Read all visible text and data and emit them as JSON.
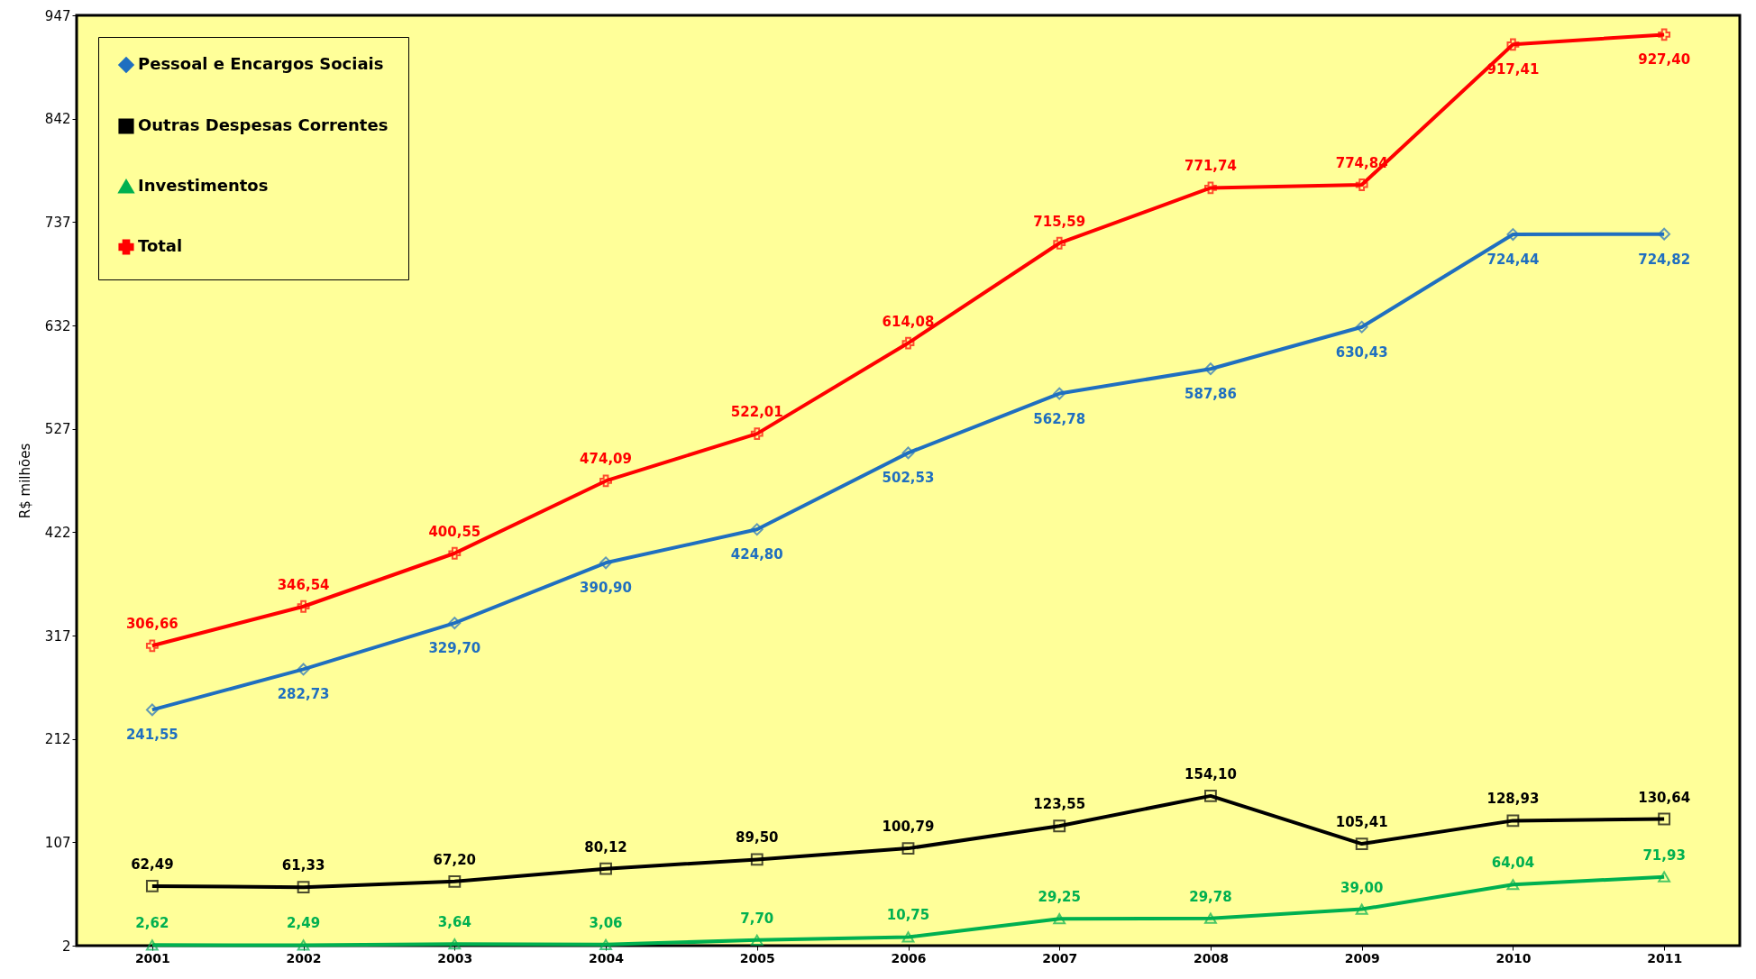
{
  "chart_data": {
    "type": "line",
    "ylabel": "R$ milhões",
    "categories": [
      "2001",
      "2002",
      "2003",
      "2004",
      "2005",
      "2006",
      "2007",
      "2008",
      "2009",
      "2010",
      "2011"
    ],
    "ylim": [
      2,
      947
    ],
    "yticks": [
      2,
      107,
      212,
      317,
      422,
      527,
      632,
      737,
      842,
      947
    ],
    "grid": false,
    "legend": "top left",
    "series": [
      {
        "name": "Pessoal e Encargos Sociais",
        "color": "#1f6fc0",
        "marker": "diamond",
        "values": [
          241.55,
          282.73,
          329.7,
          390.9,
          424.8,
          502.53,
          562.78,
          587.86,
          630.43,
          724.44,
          724.82
        ],
        "value_labels": [
          "241,55",
          "282,73",
          "329,70",
          "390,90",
          "424,80",
          "502,53",
          "562,78",
          "587,86",
          "630,43",
          "724,44",
          "724,82"
        ]
      },
      {
        "name": "Outras Despesas Correntes",
        "color": "#000000",
        "marker": "square",
        "values": [
          62.49,
          61.33,
          67.2,
          80.12,
          89.5,
          100.79,
          123.55,
          154.1,
          105.41,
          128.93,
          130.64
        ],
        "value_labels": [
          "62,49",
          "61,33",
          "67,20",
          "80,12",
          "89,50",
          "100,79",
          "123,55",
          "154,10",
          "105,41",
          "128,93",
          "130,64"
        ]
      },
      {
        "name": "Investimentos",
        "color": "#00b050",
        "marker": "triangle",
        "values": [
          2.62,
          2.49,
          3.64,
          3.06,
          7.7,
          10.75,
          29.25,
          29.78,
          39.0,
          64.04,
          71.93
        ],
        "value_labels": [
          "2,62",
          "2,49",
          "3,64",
          "3,06",
          "7,70",
          "10,75",
          "29,25",
          "29,78",
          "39,00",
          "64,04",
          "71,93"
        ]
      },
      {
        "name": "Total",
        "color": "#ff0000",
        "marker": "cross",
        "values": [
          306.66,
          346.54,
          400.55,
          474.09,
          522.01,
          614.08,
          715.59,
          771.74,
          774.84,
          917.41,
          927.4
        ],
        "value_labels": [
          "306,66",
          "346,54",
          "400,55",
          "474,09",
          "522,01",
          "614,08",
          "715,59",
          "771,74",
          "774,84",
          "917,41",
          "927,40"
        ]
      }
    ]
  }
}
